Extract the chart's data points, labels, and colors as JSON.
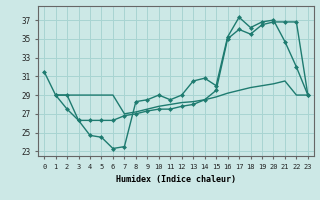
{
  "xlabel": "Humidex (Indice chaleur)",
  "bg_color": "#cce8e6",
  "grid_color": "#a8d4d2",
  "line_color": "#1e7b70",
  "xlim": [
    -0.5,
    23.5
  ],
  "ylim": [
    22.5,
    38.5
  ],
  "yticks": [
    23,
    25,
    27,
    29,
    31,
    33,
    35,
    37
  ],
  "xticks": [
    0,
    1,
    2,
    3,
    4,
    5,
    6,
    7,
    8,
    9,
    10,
    11,
    12,
    13,
    14,
    15,
    16,
    17,
    18,
    19,
    20,
    21,
    22,
    23
  ],
  "line1_x": [
    0,
    1,
    2,
    3,
    4,
    5,
    6,
    7,
    8,
    9,
    10,
    11,
    12,
    13,
    14,
    15,
    16,
    17,
    18,
    19,
    20,
    21,
    22,
    23
  ],
  "line1_y": [
    31.5,
    29.0,
    27.5,
    26.3,
    24.7,
    24.5,
    23.3,
    23.5,
    28.3,
    28.5,
    29.0,
    28.5,
    29.0,
    30.5,
    30.8,
    30.0,
    35.2,
    37.3,
    36.2,
    36.8,
    37.0,
    34.7,
    32.0,
    29.0
  ],
  "line2_x": [
    1,
    2,
    3,
    4,
    5,
    6,
    7,
    8,
    9,
    10,
    11,
    12,
    13,
    14,
    15,
    16,
    17,
    18,
    19,
    20,
    21,
    22,
    23
  ],
  "line2_y": [
    29.0,
    29.0,
    26.3,
    26.3,
    26.3,
    26.3,
    26.8,
    27.0,
    27.3,
    27.5,
    27.5,
    27.8,
    28.0,
    28.5,
    29.5,
    35.0,
    36.0,
    35.5,
    36.5,
    36.8,
    36.8,
    36.8,
    29.0
  ],
  "line3_x": [
    1,
    2,
    3,
    4,
    5,
    6,
    7,
    8,
    9,
    10,
    11,
    12,
    13,
    14,
    15,
    16,
    17,
    18,
    19,
    20,
    21,
    22,
    23
  ],
  "line3_y": [
    29.0,
    29.0,
    29.0,
    29.0,
    29.0,
    29.0,
    27.0,
    27.2,
    27.5,
    27.8,
    28.0,
    28.2,
    28.3,
    28.5,
    28.8,
    29.2,
    29.5,
    29.8,
    30.0,
    30.2,
    30.5,
    29.0,
    29.0
  ]
}
